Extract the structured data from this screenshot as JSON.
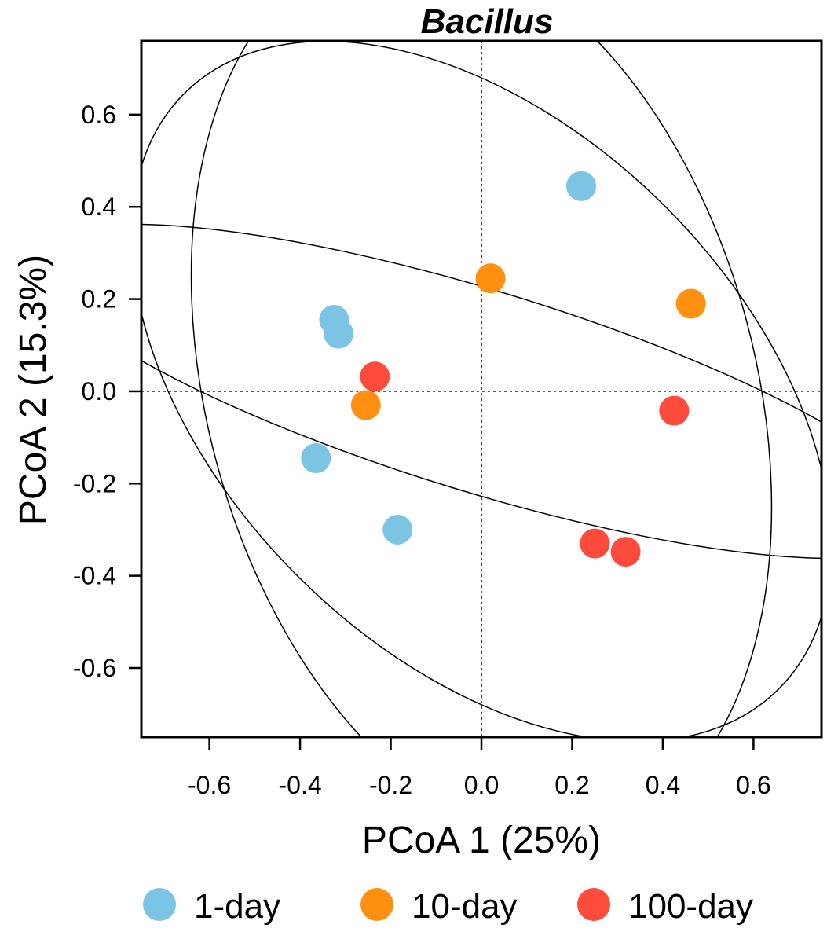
{
  "chart_data": {
    "type": "scatter",
    "title": "Bacillus",
    "xlabel": "PCoA 1 (25%)",
    "ylabel": "PCoA 2 (15.3%)",
    "xlim": [
      -0.75,
      0.75
    ],
    "ylim": [
      -0.75,
      0.76
    ],
    "xticks": [
      -0.6,
      -0.4,
      -0.2,
      0.0,
      0.2,
      0.4,
      0.6
    ],
    "yticks": [
      -0.6,
      -0.4,
      -0.2,
      0.0,
      0.2,
      0.4,
      0.6
    ],
    "xtick_labels": [
      "-0.6",
      "-0.4",
      "-0.2",
      "0.0",
      "0.2",
      "0.4",
      "0.6"
    ],
    "ytick_labels": [
      "-0.6",
      "-0.4",
      "-0.2",
      "0.0",
      "0.2",
      "0.4",
      "0.6"
    ],
    "reference_lines": {
      "x": 0,
      "y": 0,
      "style": "dotted"
    },
    "grid": false,
    "legend_position": "bottom",
    "series": [
      {
        "name": "1-day",
        "color": "#7BC4E3",
        "points": [
          [
            0.22,
            0.445
          ],
          [
            -0.325,
            0.155
          ],
          [
            -0.315,
            0.125
          ],
          [
            -0.365,
            -0.145
          ],
          [
            -0.185,
            -0.3
          ]
        ],
        "ellipse": {
          "center": [
            0.0,
            0.0
          ],
          "semi_axes": [
            0.57,
            0.92
          ],
          "rotation_deg": -45
        }
      },
      {
        "name": "10-day",
        "color": "#FF9010",
        "points": [
          [
            0.02,
            0.245
          ],
          [
            0.462,
            0.19
          ],
          [
            -0.255,
            -0.03
          ]
        ],
        "ellipse": {
          "center": [
            0.0,
            0.0
          ],
          "semi_axes": [
            0.6,
            1.0
          ],
          "rotation_deg": -15
        }
      },
      {
        "name": "100-day",
        "color": "#FF4B3B",
        "points": [
          [
            -0.235,
            0.032
          ],
          [
            0.425,
            -0.042
          ],
          [
            0.25,
            -0.33
          ],
          [
            0.318,
            -0.348
          ]
        ],
        "ellipse": {
          "center": [
            0.0,
            0.0
          ],
          "semi_axes": [
            0.22,
            1.02
          ],
          "rotation_deg": -73
        }
      }
    ]
  }
}
